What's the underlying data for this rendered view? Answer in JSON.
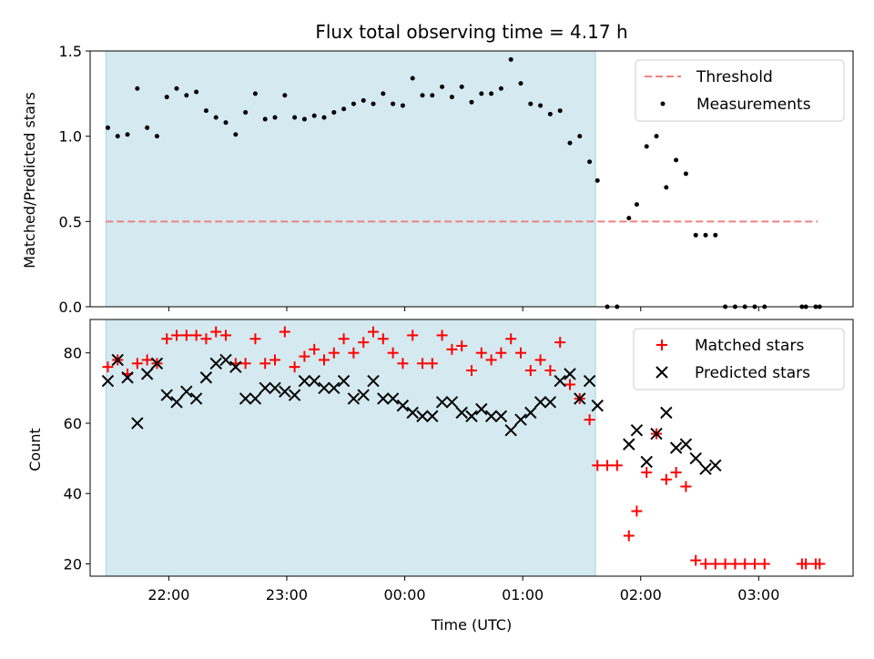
{
  "title": "Flux total observing time = 4.17 h",
  "colors": {
    "shade": "#d4eaf0",
    "threshold": "#f08080",
    "measurements": "#000000",
    "matched": "#ff0000",
    "predicted": "#000000"
  },
  "chart_data": [
    {
      "type": "scatter",
      "ylabel": "Matched/Predicted stars",
      "ylim": [
        0,
        1.5
      ],
      "yticks": [
        "0.0",
        "0.5",
        "1.0",
        "1.5"
      ],
      "xlim": [
        "21:20",
        "03:48"
      ],
      "shaded_span": [
        "21:28",
        "01:37"
      ],
      "legend": {
        "position": "top-right",
        "threshold_label": "Threshold",
        "measurements_label": "Measurements"
      },
      "threshold": {
        "name": "Threshold",
        "y": 0.5,
        "x_range": [
          "21:28",
          "03:30"
        ]
      },
      "series": [
        {
          "name": "Measurements",
          "points": [
            [
              "21:29",
              1.05
            ],
            [
              "21:34",
              1.0
            ],
            [
              "21:39",
              1.01
            ],
            [
              "21:44",
              1.28
            ],
            [
              "21:49",
              1.05
            ],
            [
              "21:54",
              1.0
            ],
            [
              "21:59",
              1.23
            ],
            [
              "22:04",
              1.28
            ],
            [
              "22:09",
              1.24
            ],
            [
              "22:14",
              1.26
            ],
            [
              "22:19",
              1.15
            ],
            [
              "22:24",
              1.11
            ],
            [
              "22:29",
              1.08
            ],
            [
              "22:34",
              1.01
            ],
            [
              "22:39",
              1.14
            ],
            [
              "22:44",
              1.25
            ],
            [
              "22:49",
              1.1
            ],
            [
              "22:54",
              1.11
            ],
            [
              "22:59",
              1.24
            ],
            [
              "23:04",
              1.11
            ],
            [
              "23:09",
              1.1
            ],
            [
              "23:14",
              1.12
            ],
            [
              "23:19",
              1.11
            ],
            [
              "23:24",
              1.14
            ],
            [
              "23:29",
              1.16
            ],
            [
              "23:34",
              1.19
            ],
            [
              "23:39",
              1.21
            ],
            [
              "23:44",
              1.19
            ],
            [
              "23:49",
              1.25
            ],
            [
              "23:54",
              1.19
            ],
            [
              "23:59",
              1.18
            ],
            [
              "00:04",
              1.34
            ],
            [
              "00:09",
              1.24
            ],
            [
              "00:14",
              1.24
            ],
            [
              "00:19",
              1.29
            ],
            [
              "00:24",
              1.23
            ],
            [
              "00:29",
              1.29
            ],
            [
              "00:34",
              1.2
            ],
            [
              "00:39",
              1.25
            ],
            [
              "00:44",
              1.25
            ],
            [
              "00:49",
              1.28
            ],
            [
              "00:54",
              1.45
            ],
            [
              "00:59",
              1.31
            ],
            [
              "01:04",
              1.19
            ],
            [
              "01:09",
              1.18
            ],
            [
              "01:14",
              1.13
            ],
            [
              "01:19",
              1.15
            ],
            [
              "01:24",
              0.96
            ],
            [
              "01:29",
              1.0
            ],
            [
              "01:34",
              0.85
            ],
            [
              "01:38",
              0.74
            ],
            [
              "01:43",
              0.0
            ],
            [
              "01:48",
              0.0
            ],
            [
              "01:54",
              0.52
            ],
            [
              "01:58",
              0.6
            ],
            [
              "02:03",
              0.94
            ],
            [
              "02:08",
              1.0
            ],
            [
              "02:13",
              0.7
            ],
            [
              "02:18",
              0.86
            ],
            [
              "02:23",
              0.78
            ],
            [
              "02:28",
              0.42
            ],
            [
              "02:33",
              0.42
            ],
            [
              "02:38",
              0.42
            ],
            [
              "02:43",
              0.0
            ],
            [
              "02:48",
              0.0
            ],
            [
              "02:53",
              0.0
            ],
            [
              "02:58",
              0.0
            ],
            [
              "03:03",
              0.0
            ],
            [
              "03:22",
              0.0
            ],
            [
              "03:24",
              0.0
            ],
            [
              "03:29",
              0.0
            ],
            [
              "03:31",
              0.0
            ]
          ]
        }
      ]
    },
    {
      "type": "scatter",
      "xlabel": "Time (UTC)",
      "ylabel": "Count",
      "ylim": [
        16.5,
        89.5
      ],
      "yticks": [
        "20",
        "40",
        "60",
        "80"
      ],
      "xticks": [
        "22:00",
        "23:00",
        "00:00",
        "01:00",
        "02:00",
        "03:00"
      ],
      "xlim": [
        "21:20",
        "03:48"
      ],
      "shaded_span": [
        "21:28",
        "01:37"
      ],
      "legend": {
        "position": "top-right",
        "matched_label": "Matched stars",
        "predicted_label": "Predicted stars"
      },
      "series": [
        {
          "name": "Matched stars",
          "marker": "+",
          "points": [
            [
              "21:29",
              76
            ],
            [
              "21:34",
              78
            ],
            [
              "21:39",
              74
            ],
            [
              "21:44",
              77
            ],
            [
              "21:49",
              78
            ],
            [
              "21:54",
              77
            ],
            [
              "21:59",
              84
            ],
            [
              "22:04",
              85
            ],
            [
              "22:09",
              85
            ],
            [
              "22:14",
              85
            ],
            [
              "22:19",
              84
            ],
            [
              "22:24",
              86
            ],
            [
              "22:29",
              85
            ],
            [
              "22:34",
              77
            ],
            [
              "22:39",
              77
            ],
            [
              "22:44",
              84
            ],
            [
              "22:49",
              77
            ],
            [
              "22:54",
              78
            ],
            [
              "22:59",
              86
            ],
            [
              "23:04",
              76
            ],
            [
              "23:09",
              79
            ],
            [
              "23:14",
              81
            ],
            [
              "23:19",
              78
            ],
            [
              "23:24",
              80
            ],
            [
              "23:29",
              84
            ],
            [
              "23:34",
              80
            ],
            [
              "23:39",
              83
            ],
            [
              "23:44",
              86
            ],
            [
              "23:49",
              84
            ],
            [
              "23:54",
              80
            ],
            [
              "23:59",
              77
            ],
            [
              "00:04",
              85
            ],
            [
              "00:09",
              77
            ],
            [
              "00:14",
              77
            ],
            [
              "00:19",
              85
            ],
            [
              "00:24",
              81
            ],
            [
              "00:29",
              82
            ],
            [
              "00:34",
              75
            ],
            [
              "00:39",
              80
            ],
            [
              "00:44",
              78
            ],
            [
              "00:49",
              80
            ],
            [
              "00:54",
              84
            ],
            [
              "00:59",
              80
            ],
            [
              "01:04",
              75
            ],
            [
              "01:09",
              78
            ],
            [
              "01:14",
              75
            ],
            [
              "01:19",
              83
            ],
            [
              "01:24",
              71
            ],
            [
              "01:29",
              67
            ],
            [
              "01:34",
              61
            ],
            [
              "01:38",
              48
            ],
            [
              "01:43",
              48
            ],
            [
              "01:48",
              48
            ],
            [
              "01:54",
              28
            ],
            [
              "01:58",
              35
            ],
            [
              "02:03",
              46
            ],
            [
              "02:08",
              57
            ],
            [
              "02:13",
              44
            ],
            [
              "02:18",
              46
            ],
            [
              "02:23",
              42
            ],
            [
              "02:28",
              21
            ],
            [
              "02:33",
              20
            ],
            [
              "02:38",
              20
            ],
            [
              "02:43",
              20
            ],
            [
              "02:48",
              20
            ],
            [
              "02:53",
              20
            ],
            [
              "02:58",
              20
            ],
            [
              "03:03",
              20
            ],
            [
              "03:22",
              20
            ],
            [
              "03:24",
              20
            ],
            [
              "03:29",
              20
            ],
            [
              "03:31",
              20
            ]
          ]
        },
        {
          "name": "Predicted stars",
          "marker": "x",
          "points": [
            [
              "21:29",
              72
            ],
            [
              "21:34",
              78
            ],
            [
              "21:39",
              73
            ],
            [
              "21:44",
              60
            ],
            [
              "21:49",
              74
            ],
            [
              "21:54",
              77
            ],
            [
              "21:59",
              68
            ],
            [
              "22:04",
              66
            ],
            [
              "22:09",
              69
            ],
            [
              "22:14",
              67
            ],
            [
              "22:19",
              73
            ],
            [
              "22:24",
              77
            ],
            [
              "22:29",
              78
            ],
            [
              "22:34",
              76
            ],
            [
              "22:39",
              67
            ],
            [
              "22:44",
              67
            ],
            [
              "22:49",
              70
            ],
            [
              "22:54",
              70
            ],
            [
              "22:59",
              69
            ],
            [
              "23:04",
              68
            ],
            [
              "23:09",
              72
            ],
            [
              "23:14",
              72
            ],
            [
              "23:19",
              70
            ],
            [
              "23:24",
              70
            ],
            [
              "23:29",
              72
            ],
            [
              "23:34",
              67
            ],
            [
              "23:39",
              68
            ],
            [
              "23:44",
              72
            ],
            [
              "23:49",
              67
            ],
            [
              "23:54",
              67
            ],
            [
              "23:59",
              65
            ],
            [
              "00:04",
              63
            ],
            [
              "00:09",
              62
            ],
            [
              "00:14",
              62
            ],
            [
              "00:19",
              66
            ],
            [
              "00:24",
              66
            ],
            [
              "00:29",
              63
            ],
            [
              "00:34",
              62
            ],
            [
              "00:39",
              64
            ],
            [
              "00:44",
              62
            ],
            [
              "00:49",
              62
            ],
            [
              "00:54",
              58
            ],
            [
              "00:59",
              61
            ],
            [
              "01:04",
              63
            ],
            [
              "01:09",
              66
            ],
            [
              "01:14",
              66
            ],
            [
              "01:19",
              72
            ],
            [
              "01:24",
              74
            ],
            [
              "01:29",
              67
            ],
            [
              "01:34",
              72
            ],
            [
              "01:38",
              65
            ],
            [
              "01:54",
              54
            ],
            [
              "01:58",
              58
            ],
            [
              "02:03",
              49
            ],
            [
              "02:08",
              57
            ],
            [
              "02:13",
              63
            ],
            [
              "02:18",
              53
            ],
            [
              "02:23",
              54
            ],
            [
              "02:28",
              50
            ],
            [
              "02:33",
              47
            ],
            [
              "02:38",
              48
            ]
          ]
        }
      ]
    }
  ]
}
